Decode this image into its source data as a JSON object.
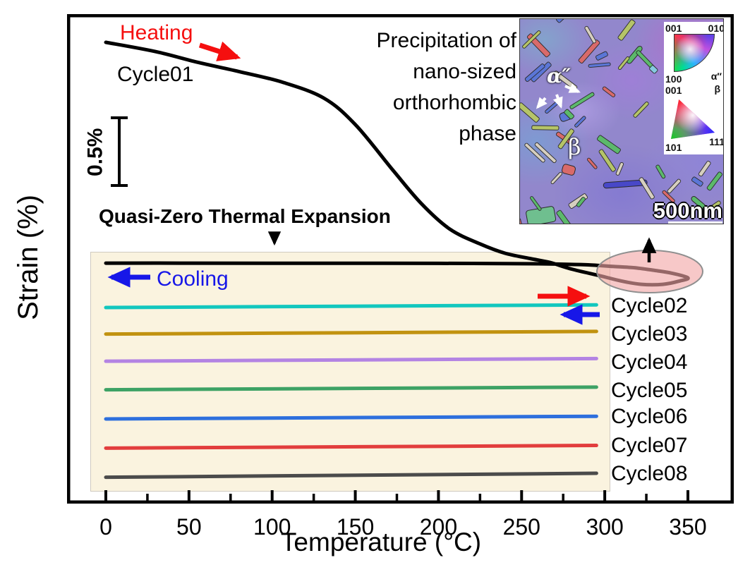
{
  "figure": {
    "x_axis": {
      "label": "Temperature (°C)",
      "ticks": [
        "0",
        "50",
        "100",
        "150",
        "200",
        "250",
        "300",
        "350"
      ]
    },
    "y_axis": {
      "label": "Strain (%)"
    },
    "scale_bar": {
      "label": "0.5%"
    },
    "annotations": {
      "heating_label": "Heating",
      "cooling_label": "Cooling",
      "cycle01_label": "Cycle01",
      "qzte_label": "Quasi-Zero Thermal Expansion"
    },
    "cycle_labels": [
      "Cycle02",
      "Cycle03",
      "Cycle04",
      "Cycle05",
      "Cycle06",
      "Cycle07",
      "Cycle08"
    ],
    "inset": {
      "caption": "Precipitation of\nnano-sized\northorhombic\nphase",
      "alpha_phase_label": "α″",
      "beta_phase_label": "β",
      "scale_bar_text": "500nm",
      "ipf_legend": {
        "top_triangle": {
          "top_left": "001",
          "top_right": "010",
          "bottom_left": "100"
        },
        "phase_alpha": "α″",
        "phase_beta": "β",
        "bottom_triangle": {
          "top_left": "001",
          "bottom_left": "101",
          "bottom_right": "111"
        }
      }
    },
    "colors": {
      "heating": "#f50f0f",
      "cooling": "#1717e8",
      "highlight_ellipse": "#f2a6a6",
      "box_fill": "#faf3df"
    }
  },
  "chart_data": {
    "type": "line",
    "title": "",
    "xlabel": "Temperature (°C)",
    "ylabel": "Strain (%)",
    "xlim": [
      -25,
      375
    ],
    "x_ticks": [
      0,
      50,
      100,
      150,
      200,
      250,
      300,
      350
    ],
    "y_axis_note": "no numeric y ticks; vertical scale bar = 0.5% strain",
    "legend_position": "right of shaded box",
    "grid": false,
    "series": [
      {
        "name": "Cycle01-heating",
        "color": "#000000",
        "points": [
          [
            0,
            1.67
          ],
          [
            30,
            1.6
          ],
          [
            55,
            1.52
          ],
          [
            80,
            1.45
          ],
          [
            106,
            1.37
          ],
          [
            131,
            1.25
          ],
          [
            150,
            1.05
          ],
          [
            173,
            0.7
          ],
          [
            190,
            0.45
          ],
          [
            207,
            0.26
          ],
          [
            225,
            0.15
          ],
          [
            240,
            0.08
          ],
          [
            255,
            0.04
          ],
          [
            267,
            0.01
          ],
          [
            280,
            -0.04
          ],
          [
            297,
            -0.09
          ],
          [
            310,
            -0.13
          ],
          [
            322,
            -0.155
          ],
          [
            335,
            -0.155
          ],
          [
            345,
            -0.13
          ],
          [
            350,
            -0.106
          ]
        ]
      },
      {
        "name": "Cycle01-cooling",
        "color": "#000000",
        "points": [
          [
            350,
            -0.106
          ],
          [
            340,
            -0.07
          ],
          [
            330,
            -0.05
          ],
          [
            318,
            -0.03
          ],
          [
            305,
            -0.02
          ],
          [
            290,
            -0.008
          ],
          [
            275,
            -0.003
          ],
          [
            260,
            0.0
          ],
          [
            230,
            0.002
          ],
          [
            200,
            0.003
          ],
          [
            150,
            0.004
          ],
          [
            100,
            0.004
          ],
          [
            50,
            0.005
          ],
          [
            0,
            0.005
          ]
        ]
      },
      {
        "name": "Cycle02",
        "color": "#12c7be",
        "points": [
          [
            0,
            -0.33
          ],
          [
            295,
            -0.31
          ]
        ]
      },
      {
        "name": "Cycle03",
        "color": "#c19210",
        "points": [
          [
            0,
            -0.53
          ],
          [
            295,
            -0.51
          ]
        ]
      },
      {
        "name": "Cycle04",
        "color": "#b383e3",
        "points": [
          [
            0,
            -0.735
          ],
          [
            295,
            -0.715
          ]
        ]
      },
      {
        "name": "Cycle05",
        "color": "#3da265",
        "points": [
          [
            0,
            -0.95
          ],
          [
            295,
            -0.93
          ]
        ]
      },
      {
        "name": "Cycle06",
        "color": "#2d6fdd",
        "points": [
          [
            0,
            -1.17
          ],
          [
            295,
            -1.15
          ]
        ]
      },
      {
        "name": "Cycle07",
        "color": "#e23d3d",
        "points": [
          [
            0,
            -1.39
          ],
          [
            295,
            -1.37
          ]
        ]
      },
      {
        "name": "Cycle08",
        "color": "#4b4b4b",
        "points": [
          [
            0,
            -1.61
          ],
          [
            295,
            -1.58
          ]
        ]
      }
    ],
    "note": "Cycle01 shows large contraction on heating (precipitation of nano-sized orthorhombic phase, highlighted near 300–350 °C); Cycles 02–08 show quasi-zero thermal expansion and are vertically offset for clarity"
  }
}
